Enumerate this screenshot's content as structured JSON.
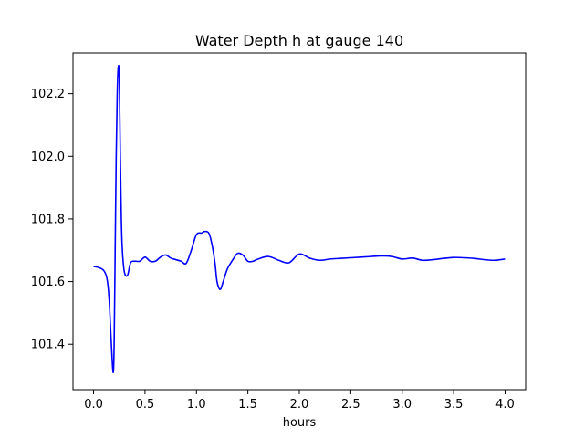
{
  "chart_data": {
    "type": "line",
    "title": "Water Depth h at gauge 140",
    "xlabel": "hours",
    "ylabel": "",
    "xlim": [
      -0.2,
      4.2
    ],
    "ylim": [
      101.255,
      102.33
    ],
    "xticks": [
      0.0,
      0.5,
      1.0,
      1.5,
      2.0,
      2.5,
      3.0,
      3.5,
      4.0
    ],
    "xtick_labels": [
      "0.0",
      "0.5",
      "1.0",
      "1.5",
      "2.0",
      "2.5",
      "3.0",
      "3.5",
      "4.0"
    ],
    "yticks": [
      101.4,
      101.6,
      101.8,
      102.0,
      102.2
    ],
    "ytick_labels": [
      "101.4",
      "101.6",
      "101.8",
      "102.0",
      "102.2"
    ],
    "grid": false,
    "series": [
      {
        "color": "#0000ff",
        "x": [
          0.0,
          0.05,
          0.1,
          0.13,
          0.15,
          0.17,
          0.19,
          0.2,
          0.21,
          0.22,
          0.23,
          0.24,
          0.25,
          0.26,
          0.27,
          0.28,
          0.3,
          0.33,
          0.36,
          0.4,
          0.45,
          0.5,
          0.55,
          0.6,
          0.65,
          0.7,
          0.75,
          0.8,
          0.85,
          0.9,
          0.95,
          1.0,
          1.05,
          1.08,
          1.12,
          1.15,
          1.18,
          1.2,
          1.23,
          1.26,
          1.3,
          1.35,
          1.4,
          1.45,
          1.5,
          1.55,
          1.6,
          1.7,
          1.8,
          1.9,
          2.0,
          2.1,
          2.2,
          2.3,
          2.4,
          2.5,
          2.6,
          2.7,
          2.8,
          2.9,
          3.0,
          3.1,
          3.2,
          3.3,
          3.4,
          3.5,
          3.6,
          3.7,
          3.8,
          3.9,
          4.0
        ],
        "y": [
          101.648,
          101.645,
          101.635,
          101.61,
          101.55,
          101.42,
          101.31,
          101.4,
          101.7,
          102.0,
          102.2,
          102.285,
          102.25,
          102.0,
          101.8,
          101.7,
          101.63,
          101.62,
          101.66,
          101.665,
          101.665,
          101.678,
          101.665,
          101.665,
          101.678,
          101.685,
          101.675,
          101.67,
          101.665,
          101.658,
          101.7,
          101.75,
          101.755,
          101.76,
          101.755,
          101.72,
          101.66,
          101.6,
          101.575,
          101.6,
          101.64,
          101.668,
          101.69,
          101.685,
          101.665,
          101.665,
          101.672,
          101.68,
          101.668,
          101.66,
          101.688,
          101.675,
          101.668,
          101.672,
          101.674,
          101.676,
          101.678,
          101.68,
          101.682,
          101.68,
          101.672,
          101.675,
          101.668,
          101.67,
          101.674,
          101.677,
          101.676,
          101.674,
          101.67,
          101.668,
          101.672
        ]
      }
    ]
  }
}
